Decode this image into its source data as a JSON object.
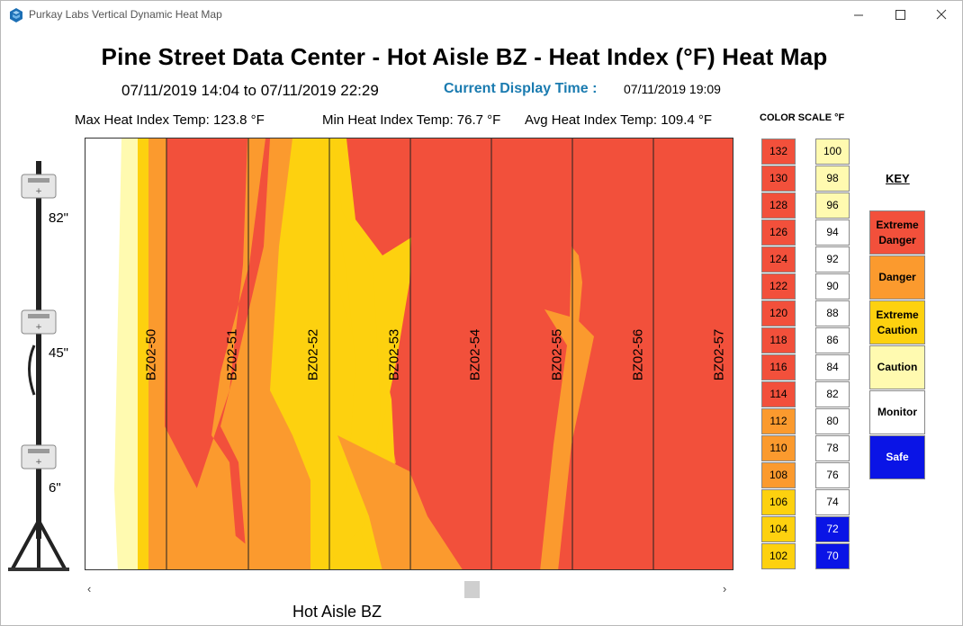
{
  "window": {
    "title": "Purkay Labs Vertical Dynamic Heat Map"
  },
  "header": {
    "title": "Pine Street Data Center - Hot Aisle BZ - Heat Index (°F) Heat Map",
    "range": "07/11/2019 14:04 to 07/11/2019 22:29",
    "current_display_label": "Current Display Time :",
    "current_display_value": "07/11/2019 19:09"
  },
  "stats": {
    "max": "Max Heat Index Temp: 123.8 °F",
    "min": "Min Heat Index Temp: 76.7 °F",
    "avg": "Avg Heat Index Temp: 109.4 °F"
  },
  "heights": [
    "82\"",
    "45\"",
    "6\""
  ],
  "racks": [
    "BZ02-50",
    "BZ02-51",
    "BZ02-52",
    "BZ02-53",
    "BZ02-54",
    "BZ02-55",
    "BZ02-56",
    "BZ02-57"
  ],
  "color_scale": {
    "title": "COLOR SCALE °F",
    "left": [
      {
        "value": "132",
        "color": "#f2503b"
      },
      {
        "value": "130",
        "color": "#f2503b"
      },
      {
        "value": "128",
        "color": "#f2503b"
      },
      {
        "value": "126",
        "color": "#f2503b"
      },
      {
        "value": "124",
        "color": "#f2503b"
      },
      {
        "value": "122",
        "color": "#f2503b"
      },
      {
        "value": "120",
        "color": "#f2503b"
      },
      {
        "value": "118",
        "color": "#f2503b"
      },
      {
        "value": "116",
        "color": "#f2503b"
      },
      {
        "value": "114",
        "color": "#f2503b"
      },
      {
        "value": "112",
        "color": "#fb9a2e"
      },
      {
        "value": "110",
        "color": "#fb9a2e"
      },
      {
        "value": "108",
        "color": "#fb9a2e"
      },
      {
        "value": "106",
        "color": "#fdd10f"
      },
      {
        "value": "104",
        "color": "#fdd10f"
      },
      {
        "value": "102",
        "color": "#fdd10f"
      }
    ],
    "right": [
      {
        "value": "100",
        "color": "#fffab0"
      },
      {
        "value": "98",
        "color": "#fffab0"
      },
      {
        "value": "96",
        "color": "#fffab0"
      },
      {
        "value": "94",
        "color": "#ffffff"
      },
      {
        "value": "92",
        "color": "#ffffff"
      },
      {
        "value": "90",
        "color": "#ffffff"
      },
      {
        "value": "88",
        "color": "#ffffff"
      },
      {
        "value": "86",
        "color": "#ffffff"
      },
      {
        "value": "84",
        "color": "#ffffff"
      },
      {
        "value": "82",
        "color": "#ffffff"
      },
      {
        "value": "80",
        "color": "#ffffff"
      },
      {
        "value": "78",
        "color": "#ffffff"
      },
      {
        "value": "76",
        "color": "#ffffff"
      },
      {
        "value": "74",
        "color": "#ffffff"
      },
      {
        "value": "72",
        "color": "#0a14e6"
      },
      {
        "value": "70",
        "color": "#0a14e6"
      }
    ]
  },
  "key": {
    "title": "KEY",
    "items": [
      {
        "label": "Extreme Danger",
        "color": "#f2503b",
        "text": "#000"
      },
      {
        "label": "Danger",
        "color": "#fb9a2e",
        "text": "#000"
      },
      {
        "label": "Extreme Caution",
        "color": "#fdd10f",
        "text": "#000"
      },
      {
        "label": "Caution",
        "color": "#fffab0",
        "text": "#000"
      },
      {
        "label": "Monitor",
        "color": "#ffffff",
        "text": "#000"
      },
      {
        "label": "Safe",
        "color": "#0a14e6",
        "text": "#fff"
      }
    ]
  },
  "footer": {
    "aisle_name": "Hot Aisle BZ"
  },
  "colors": {
    "extreme_danger": "#f2503b",
    "danger": "#fb9a2e",
    "extreme_caution": "#fdd10f",
    "caution": "#fffab0",
    "accent": "#1a7bb0"
  }
}
